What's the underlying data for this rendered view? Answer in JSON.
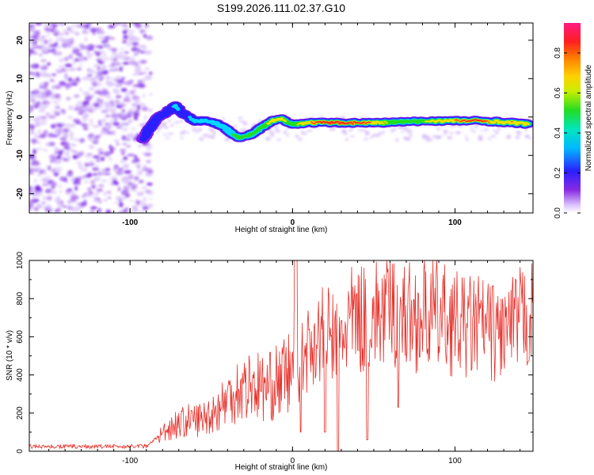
{
  "chart_data": [
    {
      "type": "heatmap",
      "title": "S199.2026.111.02.37.G10",
      "xlabel": "Height of straight line (km)",
      "ylabel": "Frequency (Hz)",
      "xlim": [
        -162,
        148
      ],
      "ylim": [
        -25,
        24.5
      ],
      "xticks": [
        -100,
        0,
        100
      ],
      "yticks": [
        -20,
        -10,
        0,
        10,
        20
      ],
      "colorbar": {
        "label": "Normalized spectral amplitude",
        "ticks": [
          "0.0",
          "0.2",
          "0.4",
          "0.6",
          "0.8"
        ],
        "tick_values": [
          0.0,
          0.2,
          0.4,
          0.6,
          0.8
        ],
        "range": [
          0,
          0.95
        ]
      },
      "ridge": [
        {
          "x": -92,
          "y": -6,
          "v": 0.25
        },
        {
          "x": -88,
          "y": -3,
          "v": 0.35
        },
        {
          "x": -83,
          "y": 0,
          "v": 0.3
        },
        {
          "x": -78,
          "y": 1,
          "v": 0.3
        },
        {
          "x": -72,
          "y": 3,
          "v": 0.4
        },
        {
          "x": -68,
          "y": 1,
          "v": 0.35
        },
        {
          "x": -60,
          "y": -1,
          "v": 0.4
        },
        {
          "x": -52,
          "y": -1,
          "v": 0.42
        },
        {
          "x": -45,
          "y": -2,
          "v": 0.45
        },
        {
          "x": -38,
          "y": -4,
          "v": 0.5
        },
        {
          "x": -32,
          "y": -5.5,
          "v": 0.6
        },
        {
          "x": -25,
          "y": -4.5,
          "v": 0.55
        },
        {
          "x": -18,
          "y": -2.5,
          "v": 0.6
        },
        {
          "x": -12,
          "y": -1,
          "v": 0.75
        },
        {
          "x": -6,
          "y": -0.5,
          "v": 0.7
        },
        {
          "x": 0,
          "y": -2,
          "v": 0.6
        },
        {
          "x": 8,
          "y": -1.5,
          "v": 0.75
        },
        {
          "x": 15,
          "y": -1.5,
          "v": 0.85
        },
        {
          "x": 25,
          "y": -1.5,
          "v": 0.95
        },
        {
          "x": 35,
          "y": -1.5,
          "v": 0.9
        },
        {
          "x": 45,
          "y": -1.5,
          "v": 0.85
        },
        {
          "x": 55,
          "y": -1.5,
          "v": 0.7
        },
        {
          "x": 65,
          "y": -1.3,
          "v": 0.6
        },
        {
          "x": 75,
          "y": -1.2,
          "v": 0.6
        },
        {
          "x": 85,
          "y": -1,
          "v": 0.7
        },
        {
          "x": 95,
          "y": -1,
          "v": 0.75
        },
        {
          "x": 105,
          "y": -1,
          "v": 0.85
        },
        {
          "x": 115,
          "y": -1,
          "v": 0.9
        },
        {
          "x": 125,
          "y": -1.2,
          "v": 0.75
        },
        {
          "x": 135,
          "y": -1.5,
          "v": 0.8
        },
        {
          "x": 145,
          "y": -1.8,
          "v": 0.75
        }
      ]
    },
    {
      "type": "line",
      "xlabel": "Height of straight line (km)",
      "ylabel": "SNR (10 * v/v)",
      "xlim": [
        -162,
        148
      ],
      "ylim": [
        0,
        1000
      ],
      "xticks": [
        -100,
        0,
        100
      ],
      "yticks": [
        0,
        200,
        400,
        600,
        800,
        1000
      ],
      "color": "#e8302a",
      "series": [
        {
          "name": "SNR",
          "x": [
            -162,
            -140,
            -120,
            -100,
            -90,
            -82,
            -75,
            -65,
            -55,
            -45,
            -35,
            -25,
            -15,
            -5,
            0,
            2,
            4,
            8,
            12,
            20,
            25,
            28,
            35,
            45,
            55,
            60,
            65,
            75,
            85,
            95,
            105,
            115,
            125,
            135,
            142,
            148
          ],
          "y": [
            25,
            25,
            25,
            25,
            28,
            80,
            130,
            160,
            170,
            230,
            320,
            350,
            330,
            390,
            420,
            1000,
            430,
            520,
            570,
            620,
            600,
            560,
            680,
            700,
            720,
            740,
            720,
            700,
            720,
            690,
            650,
            660,
            620,
            640,
            700,
            720
          ]
        }
      ],
      "spikes": [
        {
          "x": 2,
          "y": 1000
        },
        {
          "x": 5,
          "y": 100
        },
        {
          "x": 20,
          "y": 100
        },
        {
          "x": 28,
          "y": 0
        },
        {
          "x": 46,
          "y": 60
        },
        {
          "x": 65,
          "y": 230
        }
      ]
    }
  ]
}
